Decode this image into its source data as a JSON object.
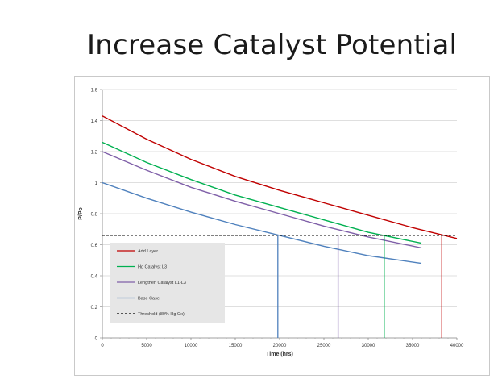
{
  "slide": {
    "title": "Increase Catalyst Potential"
  },
  "chart_data": {
    "type": "line",
    "xlabel": "Time (hrs)",
    "ylabel": "P/Po",
    "xlim": [
      0,
      40000
    ],
    "ylim": [
      0,
      1.6
    ],
    "x_ticks": [
      "0",
      "5000",
      "10000",
      "15000",
      "20000",
      "25000",
      "30000",
      "35000",
      "40000"
    ],
    "y_ticks": [
      "0",
      "0.2",
      "0.4",
      "0.6",
      "0.8",
      "1",
      "1.2",
      "1.4",
      "1.6"
    ],
    "grid": "horizontal",
    "legend_position": "bottom-left",
    "series": [
      {
        "name": "Add Layer",
        "color": "#c00000",
        "x": [
          0,
          5000,
          10000,
          15000,
          20000,
          25000,
          30000,
          35000,
          40000
        ],
        "y": [
          1.43,
          1.28,
          1.15,
          1.04,
          0.95,
          0.87,
          0.79,
          0.71,
          0.64
        ]
      },
      {
        "name": "Hg Catalyst L3",
        "color": "#00b050",
        "x": [
          0,
          5000,
          10000,
          15000,
          20000,
          25000,
          30000,
          36000
        ],
        "y": [
          1.26,
          1.13,
          1.02,
          0.92,
          0.84,
          0.76,
          0.68,
          0.61
        ]
      },
      {
        "name": "Lengthen Catalyst L1-L3",
        "color": "#7f5fa8",
        "x": [
          0,
          5000,
          10000,
          15000,
          20000,
          25000,
          30000,
          36000
        ],
        "y": [
          1.2,
          1.08,
          0.97,
          0.88,
          0.8,
          0.72,
          0.65,
          0.58
        ]
      },
      {
        "name": "Base Case",
        "color": "#4f81bd",
        "x": [
          0,
          5000,
          10000,
          15000,
          20000,
          25000,
          30000,
          36000
        ],
        "y": [
          1.0,
          0.9,
          0.81,
          0.73,
          0.66,
          0.59,
          0.53,
          0.48
        ]
      },
      {
        "name": "Threshold (80% Hg Ox)",
        "color": "#000000",
        "dashed": true,
        "x": [
          0,
          40000
        ],
        "y": [
          0.66,
          0.66
        ]
      }
    ],
    "drop_lines": [
      {
        "series": "Base Case",
        "x": 19800,
        "color": "#4f81bd"
      },
      {
        "series": "Lengthen Catalyst L1-L3",
        "x": 26600,
        "color": "#7f5fa8"
      },
      {
        "series": "Hg Catalyst L3",
        "x": 31800,
        "color": "#00b050"
      },
      {
        "series": "Add Layer",
        "x": 38300,
        "color": "#c00000"
      }
    ]
  }
}
